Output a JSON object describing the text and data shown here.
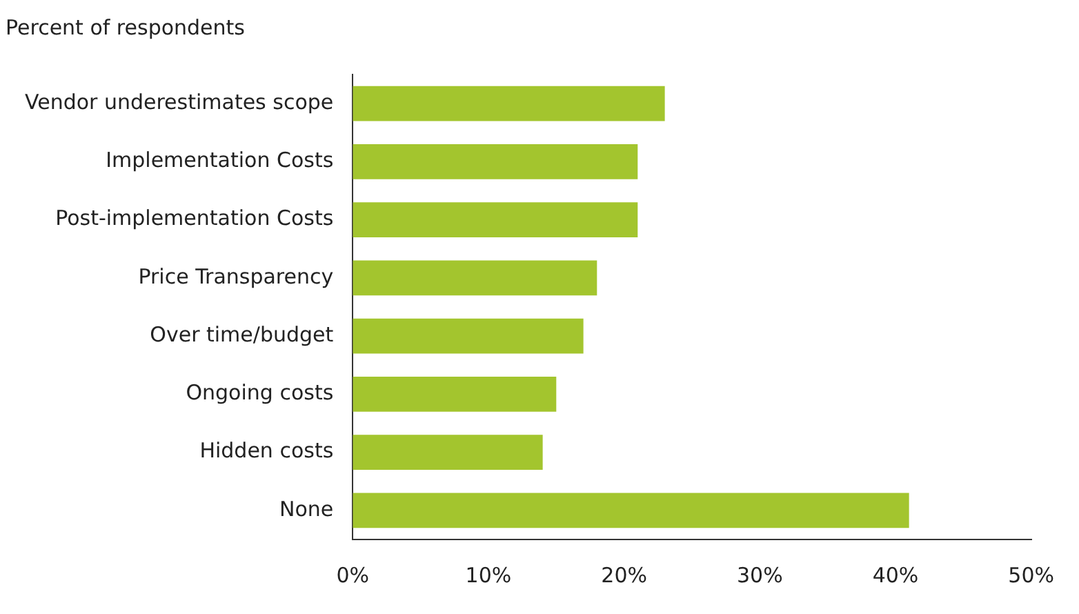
{
  "chart_data": {
    "type": "bar",
    "orientation": "horizontal",
    "title": "Percent of respondents",
    "categories": [
      "Vendor underestimates scope",
      "Implementation Costs",
      "Post-implementation Costs",
      "Price Transparency",
      "Over time/budget",
      "Ongoing costs",
      "Hidden costs",
      "None"
    ],
    "values": [
      23,
      21,
      21,
      18,
      17,
      15,
      14,
      41
    ],
    "color": "#a3c52e",
    "xlim": [
      0,
      50
    ],
    "xticks": [
      {
        "value": 0,
        "label": "0%"
      },
      {
        "value": 10,
        "label": "10%"
      },
      {
        "value": 20,
        "label": "20%"
      },
      {
        "value": 30,
        "label": "30%"
      },
      {
        "value": 40,
        "label": "40%"
      },
      {
        "value": 50,
        "label": "50%"
      }
    ],
    "grid": false,
    "legend": false
  }
}
